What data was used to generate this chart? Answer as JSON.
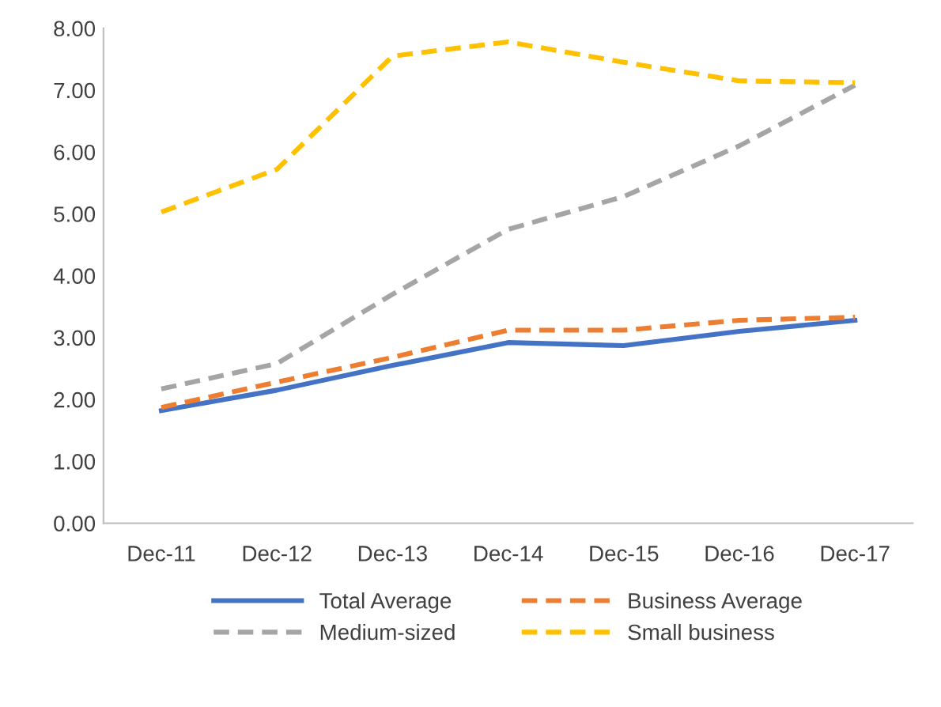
{
  "chart_data": {
    "type": "line",
    "categories": [
      "Dec-11",
      "Dec-12",
      "Dec-13",
      "Dec-14",
      "Dec-15",
      "Dec-16",
      "Dec-17"
    ],
    "series": [
      {
        "name": "Total Average",
        "color": "#4472c4",
        "line_style": "solid",
        "values": [
          1.82,
          2.15,
          2.55,
          2.92,
          2.87,
          3.1,
          3.28
        ]
      },
      {
        "name": "Business Average",
        "color": "#ed7d31",
        "line_style": "dashed",
        "values": [
          1.87,
          2.28,
          2.68,
          3.12,
          3.12,
          3.28,
          3.33
        ]
      },
      {
        "name": "Medium-sized",
        "color": "#a5a5a5",
        "line_style": "dashed",
        "values": [
          2.17,
          2.58,
          3.7,
          4.75,
          5.28,
          6.1,
          7.08
        ]
      },
      {
        "name": "Small business",
        "color": "#ffc000",
        "line_style": "dashed",
        "values": [
          5.03,
          5.72,
          7.55,
          7.78,
          7.45,
          7.15,
          7.12
        ]
      }
    ],
    "ylim": [
      0,
      8
    ],
    "yticks": [
      {
        "value": 0,
        "label": "0.00"
      },
      {
        "value": 1,
        "label": "1.00"
      },
      {
        "value": 2,
        "label": "2.00"
      },
      {
        "value": 3,
        "label": "3.00"
      },
      {
        "value": 4,
        "label": "4.00"
      },
      {
        "value": 5,
        "label": "5.00"
      },
      {
        "value": 6,
        "label": "6.00"
      },
      {
        "value": 7,
        "label": "7.00"
      },
      {
        "value": 8,
        "label": "8.00"
      }
    ],
    "grid": false,
    "legend": "bottom",
    "marker": "none"
  }
}
